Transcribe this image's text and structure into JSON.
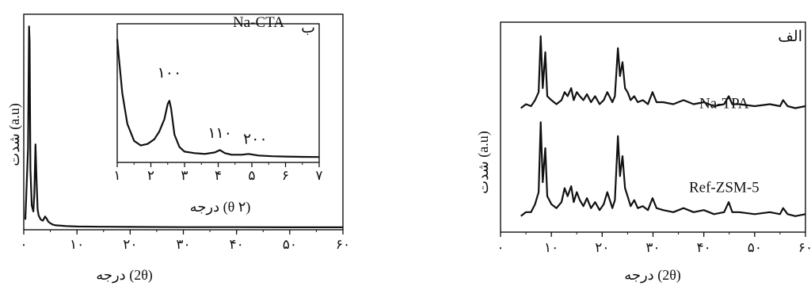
{
  "chart_data": [
    {
      "id": "left",
      "type": "line",
      "panel_label": "",
      "xlabel": "درجه (2θ)",
      "ylabel": "شدت (a.u)",
      "xlim": [
        0,
        60
      ],
      "x_ticks": [
        0,
        10,
        20,
        30,
        40,
        50,
        60
      ],
      "x_tick_labels": [
        "۰",
        "۱۰",
        "۲۰",
        "۳۰",
        "۴۰",
        "۵۰",
        "۶۰"
      ],
      "grid": false,
      "series": [
        {
          "x": [
            0.3,
            0.8,
            1.0,
            1.1,
            1.25,
            1.5,
            1.8,
            2.0,
            2.2,
            2.4,
            2.6,
            2.8,
            3.2,
            3.6,
            4.0,
            4.3,
            4.6,
            5.0,
            5.5,
            6.0,
            7.0,
            8.0,
            10,
            15,
            20,
            30,
            40,
            50,
            60
          ],
          "y": [
            5,
            40,
            100,
            92,
            30,
            12,
            9,
            18,
            42,
            25,
            10,
            7,
            5,
            4.5,
            6.5,
            5.5,
            4,
            3.2,
            2.5,
            2.2,
            2,
            1.8,
            1.6,
            1.5,
            1.4,
            1.3,
            1.3,
            1.2,
            1.2
          ]
        }
      ],
      "inset": {
        "type": "line",
        "panel_label": "ب",
        "xlabel": "درجه (θ ۲)",
        "ylabel": "شدت (a.u)",
        "xlim": [
          1,
          7
        ],
        "x_ticks": [
          1,
          2,
          3,
          4,
          5,
          6,
          7
        ],
        "x_tick_labels": [
          "۱",
          "۲",
          "۳",
          "۴",
          "۵",
          "۶",
          "۷"
        ],
        "annotations": [
          {
            "text": "Na-CTA",
            "x": 5.2,
            "y": 88
          },
          {
            "text": "۱۰۰",
            "x": 2.55,
            "y": 55
          },
          {
            "text": "۱۱۰",
            "x": 4.05,
            "y": 16
          },
          {
            "text": "۲۰۰",
            "x": 5.1,
            "y": 12
          }
        ],
        "series": [
          {
            "x": [
              1.0,
              1.05,
              1.15,
              1.3,
              1.5,
              1.7,
              1.9,
              2.1,
              2.25,
              2.4,
              2.5,
              2.55,
              2.6,
              2.7,
              2.85,
              3.0,
              3.3,
              3.6,
              3.9,
              4.05,
              4.2,
              4.4,
              4.7,
              4.9,
              5.2,
              5.6,
              6.0,
              6.5,
              7.0
            ],
            "y": [
              80,
              68,
              45,
              25,
              14,
              11,
              12,
              15,
              20,
              28,
              38,
              40,
              35,
              18,
              10,
              7,
              6,
              5.5,
              6.5,
              8,
              6,
              5,
              5,
              5.5,
              4.5,
              4,
              3.8,
              3.6,
              3.5
            ]
          }
        ]
      }
    },
    {
      "id": "right",
      "type": "line",
      "panel_label": "الف",
      "xlabel": "درجه (2θ)",
      "ylabel": "شدت (a.u)",
      "xlim": [
        0,
        60
      ],
      "x_ticks": [
        0,
        10,
        20,
        30,
        40,
        50,
        60
      ],
      "x_tick_labels": [
        "۰",
        "۱۰",
        "۲۰",
        "۳۰",
        "۴۰",
        "۵۰",
        "۶۰"
      ],
      "grid": false,
      "annotations": [
        {
          "text": "Na-TPA",
          "x": 44,
          "y": 0.62
        },
        {
          "text": "Ref-ZSM-5",
          "x": 44,
          "y": 0.2
        }
      ],
      "series": [
        {
          "name": "Na-TPA",
          "x": [
            4,
            5,
            6,
            6.8,
            7.5,
            7.9,
            8.3,
            8.8,
            9.2,
            10,
            11,
            12,
            12.6,
            13.2,
            13.9,
            14.4,
            15,
            15.6,
            16.3,
            17,
            17.8,
            18.6,
            19.5,
            20.3,
            21,
            22,
            22.5,
            23.1,
            23.5,
            24,
            24.5,
            25,
            25.6,
            26.3,
            27,
            28,
            29,
            29.9,
            30.7,
            32,
            34,
            36,
            38,
            40,
            42,
            44,
            44.9,
            45.6,
            47,
            50,
            53,
            55,
            55.6,
            56.5,
            58,
            60
          ],
          "y": [
            0.62,
            0.64,
            0.63,
            0.66,
            0.7,
            0.98,
            0.72,
            0.9,
            0.68,
            0.66,
            0.64,
            0.66,
            0.7,
            0.68,
            0.72,
            0.66,
            0.7,
            0.68,
            0.66,
            0.69,
            0.65,
            0.68,
            0.64,
            0.66,
            0.7,
            0.65,
            0.68,
            0.92,
            0.78,
            0.85,
            0.72,
            0.7,
            0.66,
            0.68,
            0.65,
            0.66,
            0.64,
            0.7,
            0.65,
            0.65,
            0.64,
            0.66,
            0.64,
            0.65,
            0.63,
            0.64,
            0.68,
            0.64,
            0.64,
            0.63,
            0.64,
            0.63,
            0.66,
            0.63,
            0.62,
            0.63
          ]
        },
        {
          "name": "Ref-ZSM-5",
          "x": [
            4,
            5,
            6,
            6.8,
            7.5,
            7.9,
            8.3,
            8.8,
            9.2,
            10,
            11,
            12,
            12.6,
            13.2,
            13.9,
            14.4,
            15,
            15.6,
            16.3,
            17,
            17.8,
            18.6,
            19.5,
            20.3,
            21,
            22,
            22.5,
            23.1,
            23.5,
            24,
            24.5,
            25,
            25.6,
            26.3,
            27,
            28,
            29,
            29.9,
            30.7,
            32,
            34,
            36,
            38,
            40,
            42,
            44,
            44.9,
            45.6,
            47,
            50,
            53,
            55,
            55.6,
            56.5,
            58,
            60
          ],
          "y": [
            0.08,
            0.1,
            0.1,
            0.14,
            0.2,
            0.55,
            0.25,
            0.42,
            0.18,
            0.14,
            0.12,
            0.15,
            0.22,
            0.18,
            0.23,
            0.15,
            0.2,
            0.16,
            0.13,
            0.17,
            0.12,
            0.15,
            0.11,
            0.14,
            0.2,
            0.12,
            0.16,
            0.48,
            0.28,
            0.38,
            0.22,
            0.18,
            0.13,
            0.16,
            0.12,
            0.13,
            0.11,
            0.17,
            0.12,
            0.11,
            0.1,
            0.12,
            0.1,
            0.11,
            0.09,
            0.1,
            0.15,
            0.1,
            0.1,
            0.09,
            0.1,
            0.09,
            0.12,
            0.09,
            0.08,
            0.09
          ]
        }
      ]
    }
  ]
}
